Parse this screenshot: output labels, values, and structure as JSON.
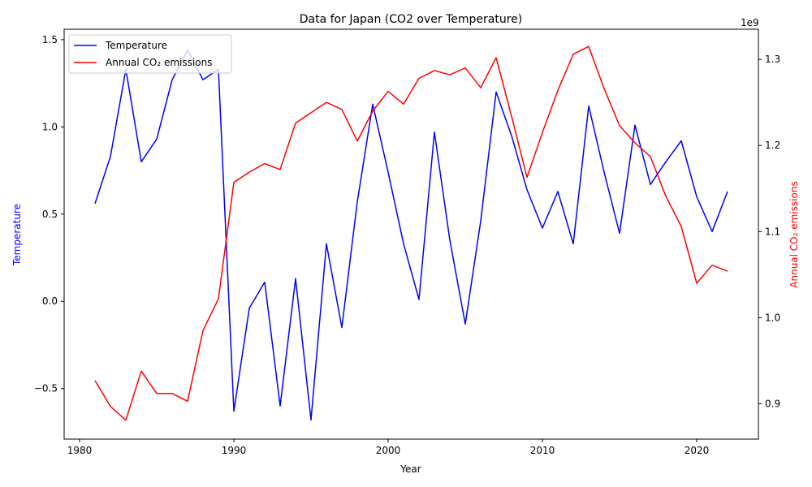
{
  "chart_data": {
    "type": "line",
    "title": "Data for Japan (CO2 over Temperature)",
    "xlabel": "Year",
    "ylabel_left": "Temperature",
    "ylabel_right": "Annual CO₂ emissions",
    "right_axis_offset_label": "1e9",
    "xlim": [
      1979,
      2024
    ],
    "ylim_left": [
      -0.79,
      1.56
    ],
    "ylim_right": [
      0.859,
      1.335
    ],
    "x_ticks": [
      1980,
      1990,
      2000,
      2010,
      2020
    ],
    "x_tick_labels": [
      "1980",
      "1990",
      "2000",
      "2010",
      "2020"
    ],
    "y_left_ticks": [
      -0.5,
      0.0,
      0.5,
      1.0,
      1.5
    ],
    "y_left_tick_labels": [
      "−0.5",
      "0.0",
      "0.5",
      "1.0",
      "1.5"
    ],
    "y_right_ticks": [
      0.9,
      1.0,
      1.1,
      1.2,
      1.3
    ],
    "y_right_tick_labels": [
      "0.9",
      "1.0",
      "1.1",
      "1.2",
      "1.3"
    ],
    "legend_position": "upper-left",
    "grid": false,
    "x": [
      1981,
      1982,
      1983,
      1984,
      1985,
      1986,
      1987,
      1988,
      1989,
      1990,
      1991,
      1992,
      1993,
      1994,
      1995,
      1996,
      1997,
      1998,
      1999,
      2000,
      2001,
      2002,
      2003,
      2004,
      2005,
      2006,
      2007,
      2008,
      2009,
      2010,
      2011,
      2012,
      2013,
      2014,
      2015,
      2016,
      2017,
      2018,
      2019,
      2020,
      2021,
      2022
    ],
    "series": [
      {
        "name": "Temperature",
        "axis": "left",
        "color": "#0000ff",
        "values": [
          0.56,
          0.83,
          1.33,
          0.8,
          0.93,
          1.27,
          1.44,
          1.27,
          1.33,
          -0.63,
          -0.04,
          0.11,
          -0.6,
          0.13,
          -0.68,
          0.33,
          -0.15,
          0.57,
          1.13,
          0.74,
          0.33,
          0.01,
          0.97,
          0.35,
          -0.13,
          0.46,
          1.2,
          0.95,
          0.64,
          0.42,
          0.63,
          0.33,
          1.12,
          0.74,
          0.39,
          1.01,
          0.67,
          0.8,
          0.92,
          0.6,
          0.4,
          0.63
        ]
      },
      {
        "name": "Annual CO₂ emissions",
        "axis": "right",
        "color": "#ff0000",
        "values": [
          0.927,
          0.897,
          0.881,
          0.938,
          0.912,
          0.912,
          0.903,
          0.985,
          1.022,
          1.157,
          1.169,
          1.179,
          1.172,
          1.226,
          1.238,
          1.25,
          1.242,
          1.205,
          1.24,
          1.263,
          1.248,
          1.278,
          1.287,
          1.282,
          1.29,
          1.267,
          1.302,
          1.234,
          1.163,
          1.215,
          1.264,
          1.306,
          1.315,
          1.266,
          1.223,
          1.203,
          1.187,
          1.141,
          1.106,
          1.04,
          1.061,
          1.054
        ]
      }
    ]
  }
}
